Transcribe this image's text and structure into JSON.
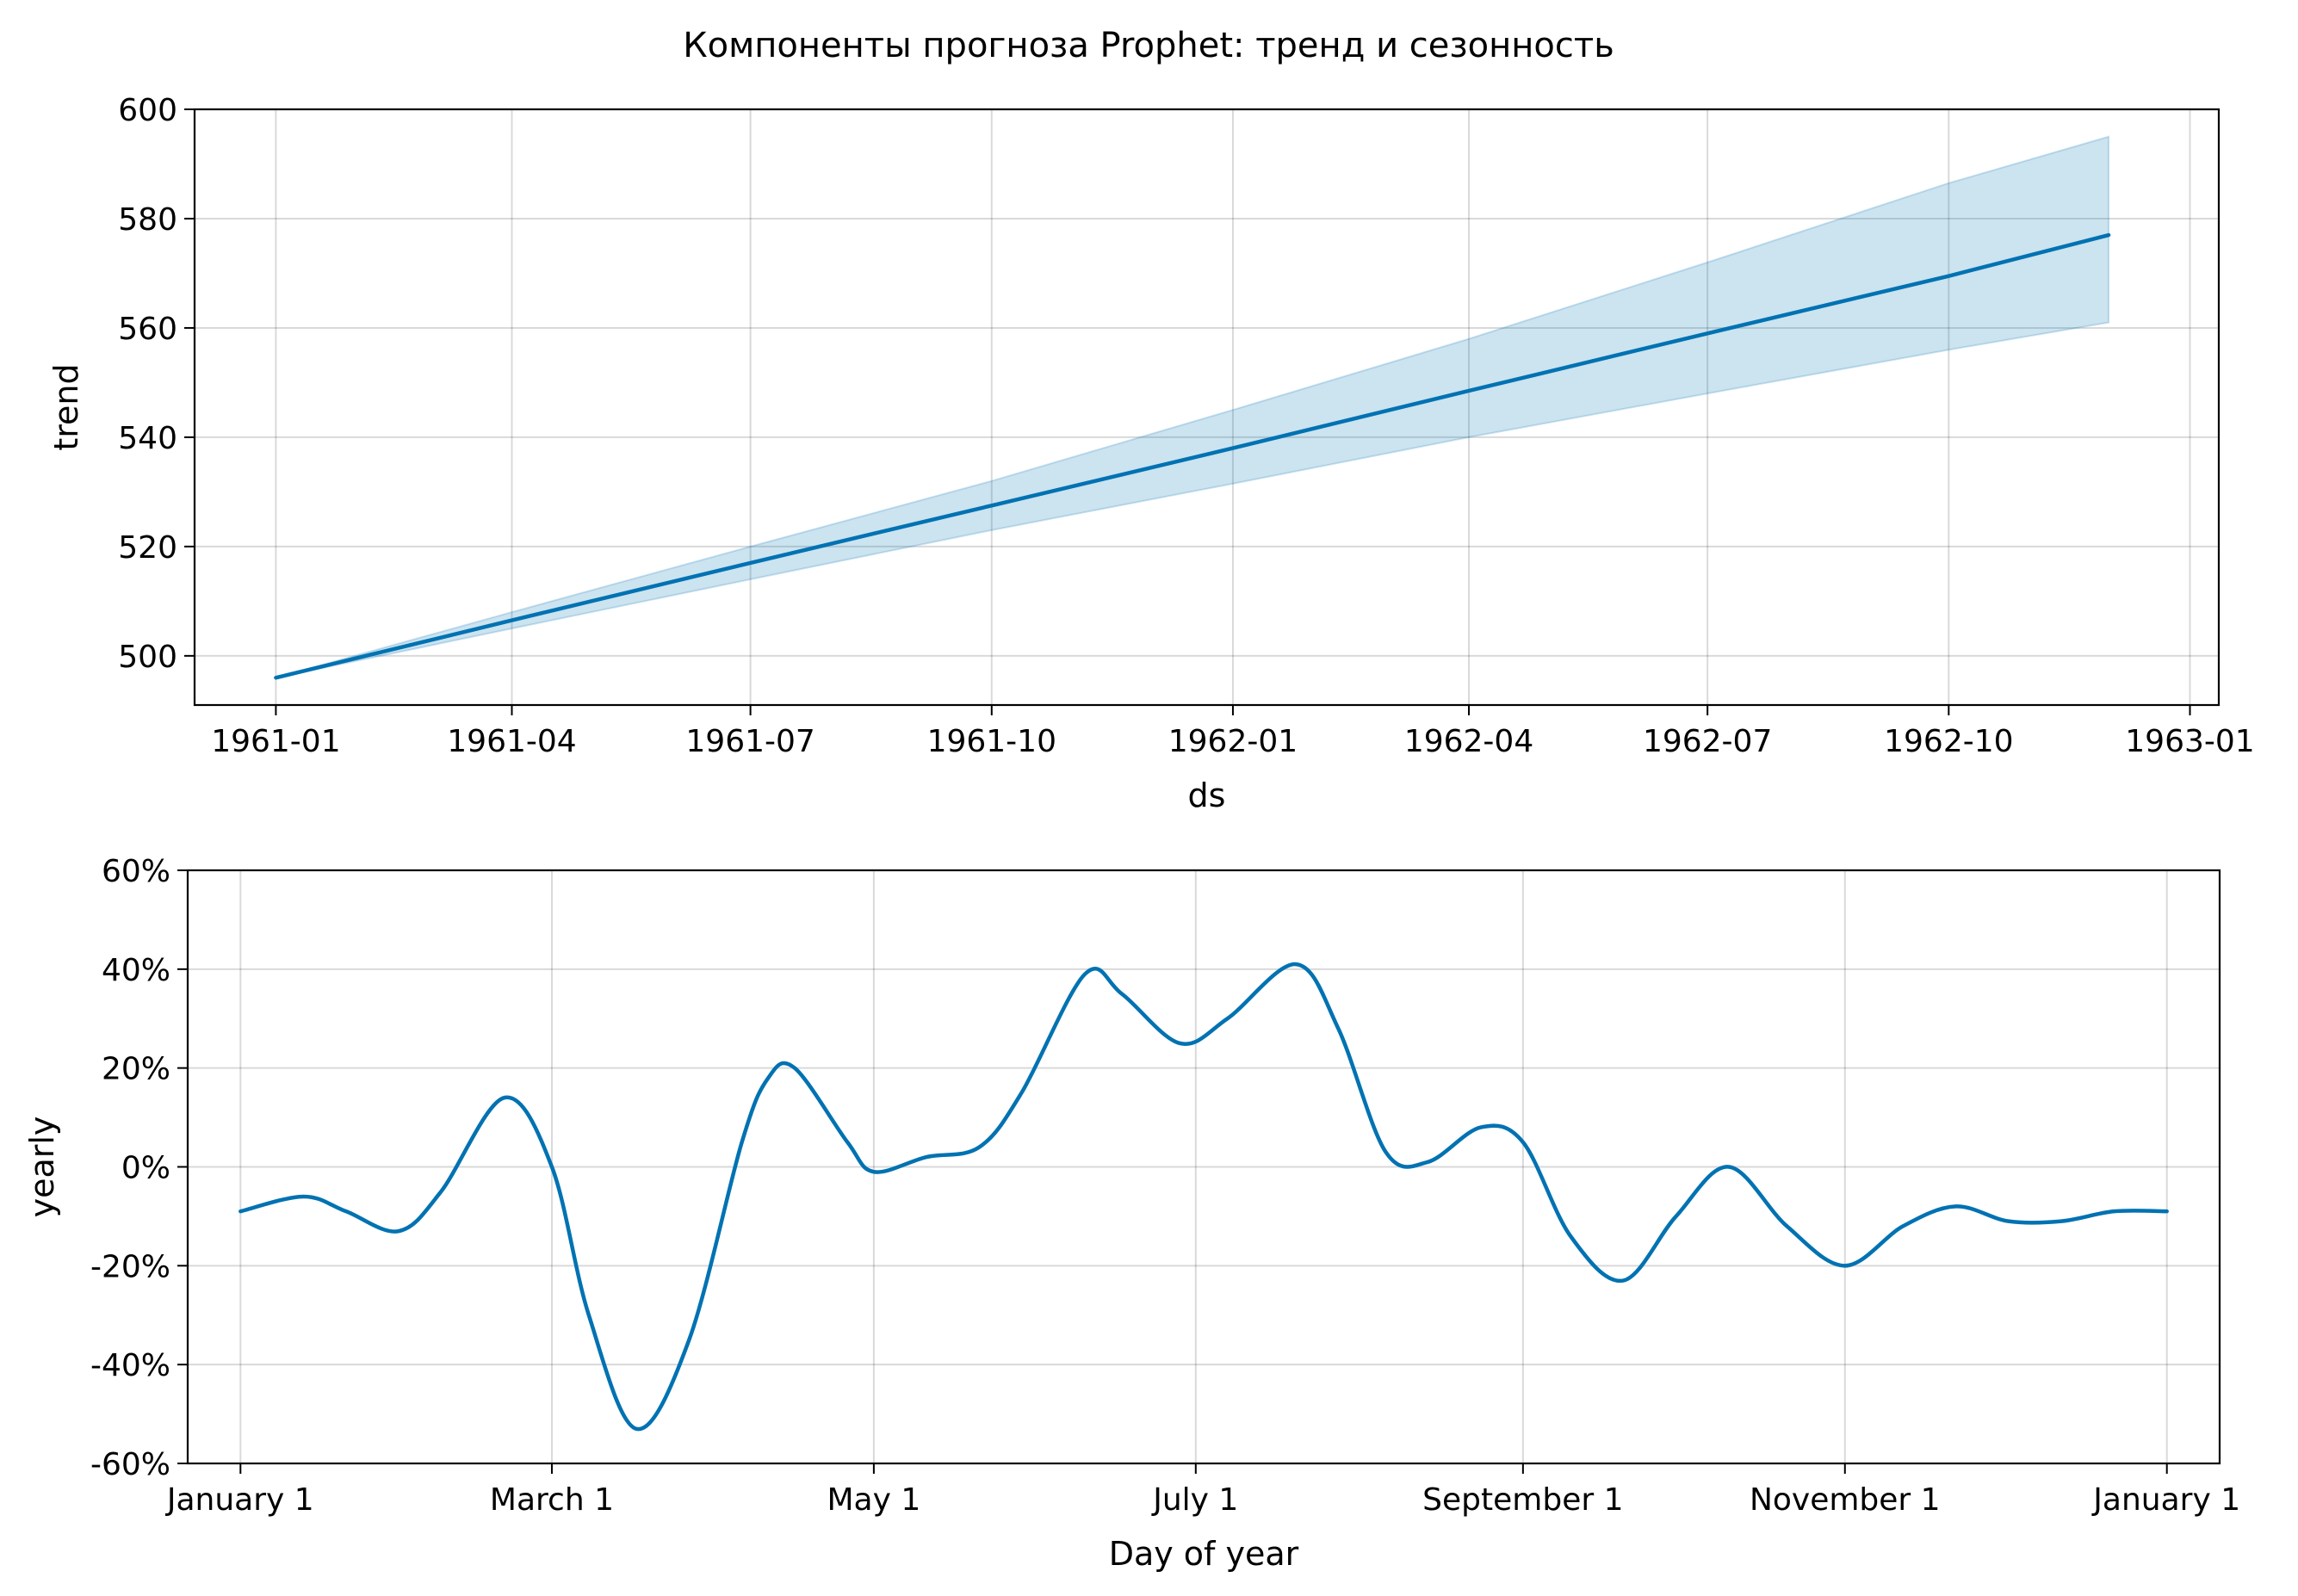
{
  "figure": {
    "title": "Компоненты прогноза Prophet: тренд и сезонность",
    "line_color": "#0072B2",
    "band_color": "#0072B2"
  },
  "chart_data": [
    {
      "type": "line",
      "name": "trend-panel",
      "xlabel": "ds",
      "ylabel": "trend",
      "x_type": "date",
      "xlim": [
        "1960-12-01",
        "1963-01-12"
      ],
      "ylim": [
        491,
        600
      ],
      "xticks": [
        "1961-01-01",
        "1961-04-01",
        "1961-07-01",
        "1961-10-01",
        "1962-01-01",
        "1962-04-01",
        "1962-07-01",
        "1962-10-01",
        "1963-01-01"
      ],
      "xtick_labels": [
        "1961-01",
        "1961-04",
        "1961-07",
        "1961-10",
        "1962-01",
        "1962-04",
        "1962-07",
        "1962-10",
        "1963-01"
      ],
      "yticks": [
        500,
        520,
        540,
        560,
        580,
        600
      ],
      "ytick_labels": [
        "500",
        "520",
        "540",
        "560",
        "580",
        "600"
      ],
      "grid": true,
      "x": [
        "1961-01-01",
        "1961-04-01",
        "1961-07-01",
        "1961-10-01",
        "1962-01-01",
        "1962-04-01",
        "1962-07-01",
        "1962-10-01",
        "1962-12-01"
      ],
      "y": [
        496,
        506.5,
        517,
        527.5,
        538,
        548.5,
        559,
        569.5,
        577
      ],
      "lower": [
        496,
        505,
        514,
        523,
        531.5,
        540,
        548,
        556,
        561
      ],
      "upper": [
        496,
        508,
        520,
        532,
        545,
        558,
        572,
        586.5,
        595
      ]
    },
    {
      "type": "line",
      "name": "yearly-panel",
      "xlabel": "Day of year",
      "ylabel": "yearly",
      "xlim": [
        -10,
        375
      ],
      "ylim": [
        -60,
        60
      ],
      "xticks": [
        0,
        59,
        120,
        181,
        243,
        304,
        365
      ],
      "xtick_labels": [
        "January 1",
        "March 1",
        "May 1",
        "July 1",
        "September 1",
        "November 1",
        "January 1"
      ],
      "yticks": [
        -60,
        -40,
        -20,
        0,
        20,
        40,
        60
      ],
      "ytick_labels": [
        "-60%",
        "-40%",
        "-20%",
        "0%",
        "20%",
        "40%",
        "60%"
      ],
      "grid": true,
      "x": [
        0,
        12,
        20,
        30,
        38,
        50,
        59,
        66,
        75,
        85,
        95,
        100,
        105,
        115,
        120,
        130,
        140,
        148,
        160,
        167,
        178,
        187,
        200,
        208,
        217,
        225,
        235,
        243,
        252,
        262,
        272,
        282,
        293,
        304,
        315,
        325,
        335,
        345,
        355,
        365
      ],
      "y": [
        -9,
        -6,
        -9,
        -13,
        -5,
        14,
        0,
        -30,
        -53,
        -35,
        5,
        18,
        20,
        5,
        -1,
        2,
        4,
        15,
        39,
        35,
        25,
        30,
        41,
        28,
        3,
        1,
        8,
        5,
        -14,
        -23,
        -10,
        0,
        -12,
        -20,
        -12,
        -8,
        -11,
        -11,
        -9,
        -9
      ]
    }
  ]
}
